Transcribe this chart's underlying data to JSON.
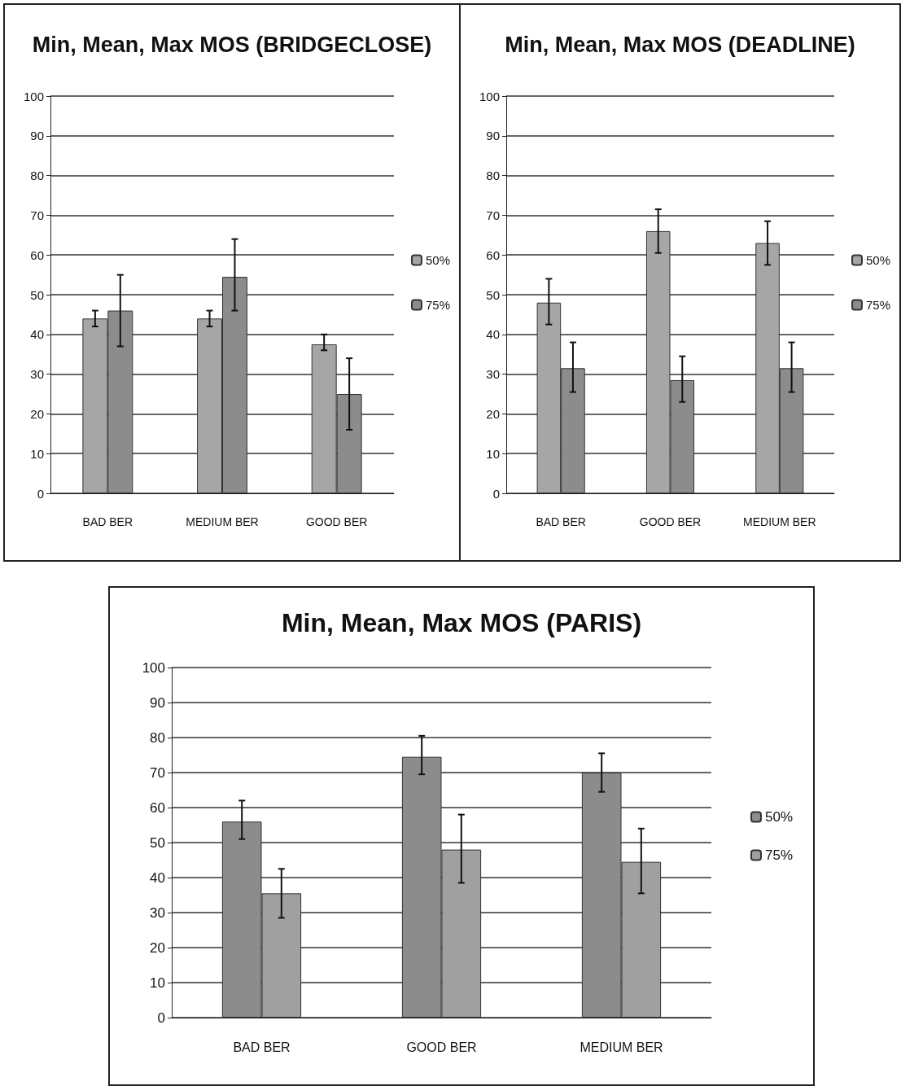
{
  "chart_data": [
    {
      "type": "bar",
      "title": "Min, Mean, Max MOS (BRIDGECLOSE)",
      "categories": [
        "BAD BER",
        "MEDIUM BER",
        "GOOD BER"
      ],
      "series": [
        {
          "name": "50%",
          "color": "#a6a6a6",
          "values": [
            44,
            44,
            37.5
          ],
          "errors": [
            [
              42,
              46
            ],
            [
              42,
              46
            ],
            [
              36,
              40
            ]
          ]
        },
        {
          "name": "75%",
          "color": "#8c8c8c",
          "values": [
            46,
            54.5,
            25
          ],
          "errors": [
            [
              37,
              55
            ],
            [
              46,
              64
            ],
            [
              16,
              34
            ]
          ]
        }
      ],
      "ylim": [
        0,
        100
      ],
      "yticks": [
        0,
        10,
        20,
        30,
        40,
        50,
        60,
        70,
        80,
        90,
        100
      ],
      "grid": "y",
      "legend": "right"
    },
    {
      "type": "bar",
      "title": "Min, Mean, Max MOS (DEADLINE)",
      "categories": [
        "BAD BER",
        "GOOD BER",
        "MEDIUM BER"
      ],
      "series": [
        {
          "name": "50%",
          "color": "#a6a6a6",
          "values": [
            48,
            66,
            63
          ],
          "errors": [
            [
              42.5,
              54
            ],
            [
              60.5,
              71.5
            ],
            [
              57.5,
              68.5
            ]
          ]
        },
        {
          "name": "75%",
          "color": "#8c8c8c",
          "values": [
            31.5,
            28.5,
            31.5
          ],
          "errors": [
            [
              25.5,
              38
            ],
            [
              23,
              34.5
            ],
            [
              25.5,
              38
            ]
          ]
        }
      ],
      "ylim": [
        0,
        100
      ],
      "yticks": [
        0,
        10,
        20,
        30,
        40,
        50,
        60,
        70,
        80,
        90,
        100
      ],
      "grid": "y",
      "legend": "right"
    },
    {
      "type": "bar",
      "title": "Min, Mean, Max MOS (PARIS)",
      "categories": [
        "BAD BER",
        "GOOD BER",
        "MEDIUM BER"
      ],
      "series": [
        {
          "name": "50%",
          "color": "#8c8c8c",
          "values": [
            56,
            74.5,
            70
          ],
          "errors": [
            [
              51,
              62
            ],
            [
              69.5,
              80.5
            ],
            [
              64.5,
              75.5
            ]
          ]
        },
        {
          "name": "75%",
          "color": "#a0a0a0",
          "values": [
            35.5,
            48,
            44.5
          ],
          "errors": [
            [
              28.5,
              42.5
            ],
            [
              38.5,
              58
            ],
            [
              35.5,
              54
            ]
          ]
        }
      ],
      "ylim": [
        0,
        100
      ],
      "yticks": [
        0,
        10,
        20,
        30,
        40,
        50,
        60,
        70,
        80,
        90,
        100
      ],
      "grid": "y",
      "legend": "right"
    }
  ]
}
